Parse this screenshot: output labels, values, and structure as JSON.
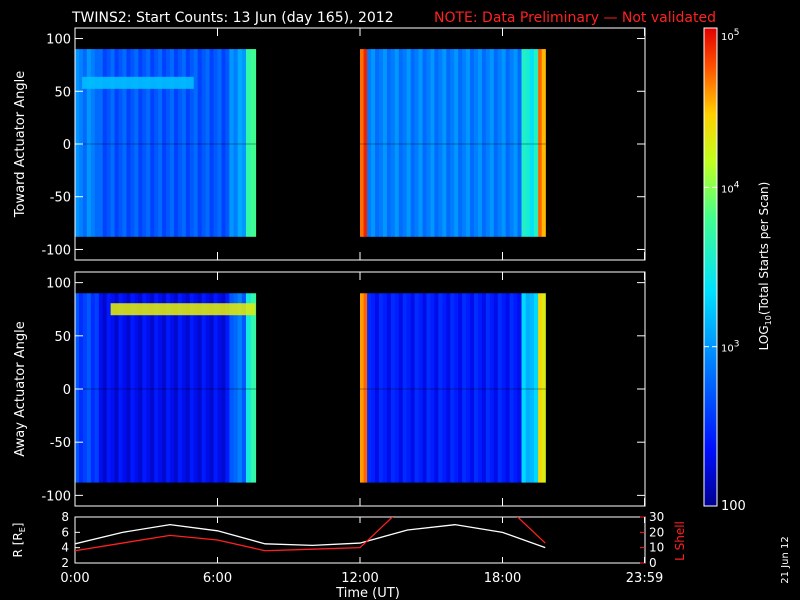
{
  "title": "TWINS2: Start Counts: 13 Jun (day 165), 2012",
  "note": "NOTE: Data Preliminary — Not validated",
  "note_color": "#ff2020",
  "side_date": "21 Jun 12",
  "colorbar": {
    "label_prefix": "LOG",
    "label_sub": "10",
    "label_suffix": "(Total Starts per Scan)",
    "ticks": [
      {
        "value": 100,
        "label": "100"
      },
      {
        "value": 1000,
        "label": "10",
        "sup": "3"
      },
      {
        "value": 10000,
        "label": "10",
        "sup": "4"
      },
      {
        "value": 100000,
        "label": "10",
        "sup": "5"
      }
    ],
    "range": [
      100,
      100000
    ],
    "scale": "log"
  },
  "panels": [
    {
      "ylabel": "Toward Actuator Angle"
    },
    {
      "ylabel": "Away Actuator Angle"
    }
  ],
  "orbit_panel": {
    "ylabel_left": "R [R",
    "ylabel_left_sub": "E",
    "ylabel_left_end": "]",
    "ylabel_right": "L Shell",
    "left_ticks": [
      "2",
      "4",
      "6",
      "8"
    ],
    "right_ticks": [
      "0",
      "10",
      "20",
      "30"
    ]
  },
  "x_ticks": [
    "0:00",
    "6:00",
    "12:00",
    "18:00",
    "23:59"
  ],
  "xlabel": "Time (UT)",
  "chart_data": {
    "type": "heatmap",
    "title": "TWINS2: Start Counts: 13 Jun (day 165), 2012",
    "xlabel": "Time (UT)",
    "x_range_hours": [
      0,
      24
    ],
    "y_ticks": [
      -100,
      -50,
      0,
      50,
      100
    ],
    "y_range": [
      -110,
      110
    ],
    "angle_coverage": [
      -88,
      90
    ],
    "data_intervals_hours": [
      [
        0.0,
        7.6
      ],
      [
        12.0,
        19.8
      ]
    ],
    "color_scale": "log",
    "color_range": [
      100,
      100000
    ],
    "panels": [
      {
        "name": "Toward Actuator Angle",
        "approx_log10_counts": [
          {
            "t": [
              0.0,
              1.0
            ],
            "v": 2.9
          },
          {
            "t": [
              1.0,
              6.5
            ],
            "v": 2.7
          },
          {
            "t": [
              6.5,
              7.2
            ],
            "v": 3.0
          },
          {
            "t": [
              7.2,
              7.6
            ],
            "v": 3.8
          },
          {
            "t": [
              12.0,
              12.3
            ],
            "v": 4.8
          },
          {
            "t": [
              12.3,
              18.8
            ],
            "v": 2.9
          },
          {
            "t": [
              18.8,
              19.5
            ],
            "v": 3.5
          },
          {
            "t": [
              19.5,
              19.8
            ],
            "v": 4.6
          }
        ],
        "band": {
          "t": [
            0.3,
            5.0
          ],
          "angle": 58,
          "v": 3.2
        }
      },
      {
        "name": "Away Actuator Angle",
        "approx_log10_counts": [
          {
            "t": [
              0.0,
              1.0
            ],
            "v": 2.6
          },
          {
            "t": [
              1.0,
              6.5
            ],
            "v": 2.3
          },
          {
            "t": [
              6.5,
              7.2
            ],
            "v": 2.8
          },
          {
            "t": [
              7.2,
              7.6
            ],
            "v": 3.6
          },
          {
            "t": [
              12.0,
              12.3
            ],
            "v": 4.6
          },
          {
            "t": [
              12.3,
              18.8
            ],
            "v": 2.4
          },
          {
            "t": [
              18.8,
              19.5
            ],
            "v": 3.2
          },
          {
            "t": [
              19.5,
              19.8
            ],
            "v": 4.4
          }
        ],
        "band": {
          "t": [
            1.5,
            7.6
          ],
          "angle": 75,
          "v": 4.3
        }
      }
    ],
    "orbit": {
      "r_range": [
        2,
        8
      ],
      "l_range": [
        0,
        30
      ],
      "R": {
        "color": "#ffffff",
        "x": [
          0,
          2,
          4,
          6,
          8,
          10,
          12,
          14,
          16,
          18,
          19.8
        ],
        "y": [
          4.5,
          6.0,
          7.0,
          6.2,
          4.5,
          4.3,
          4.6,
          6.3,
          7.0,
          6.0,
          4.0
        ]
      },
      "L": {
        "color": "#ff2020",
        "x": [
          0,
          2,
          4,
          6,
          8,
          10,
          12,
          13.5,
          18.5,
          19.8
        ],
        "y": [
          8,
          13,
          18,
          15,
          8,
          9,
          10,
          32,
          32,
          13
        ]
      }
    }
  }
}
